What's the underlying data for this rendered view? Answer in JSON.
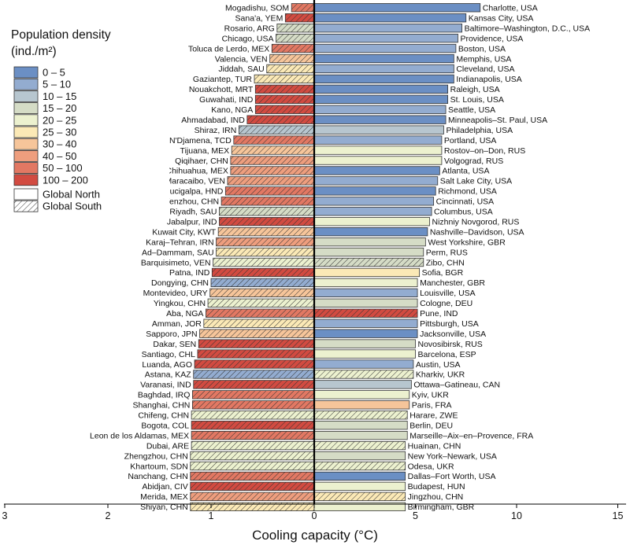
{
  "chart_data": {
    "type": "bar",
    "title": "",
    "xlabel": "Cooling capacity (°C)",
    "ylabel": "",
    "legend": {
      "title_line1": "Population density",
      "title_line2": "(ind./m²)",
      "placement": "top-left",
      "color_classes": [
        {
          "label": "0 – 5",
          "color": "#6b8fc4"
        },
        {
          "label": "5 – 10",
          "color": "#93acd0"
        },
        {
          "label": "10 – 15",
          "color": "#b7c6cf"
        },
        {
          "label": "15 – 20",
          "color": "#d5dcc6"
        },
        {
          "label": "20 – 25",
          "color": "#ecf1cf"
        },
        {
          "label": "25 – 30",
          "color": "#fbe9b6"
        },
        {
          "label": "30 – 40",
          "color": "#f6c59a"
        },
        {
          "label": "40 – 50",
          "color": "#ee9e7e"
        },
        {
          "label": "50 – 100",
          "color": "#e27863"
        },
        {
          "label": "100 – 200",
          "color": "#d24b41"
        }
      ],
      "region_classes": [
        {
          "label": "Global North",
          "pattern": "none"
        },
        {
          "label": "Global South",
          "pattern": "hatched"
        }
      ]
    },
    "left_axis": {
      "range": [
        0,
        3
      ],
      "ticks": [
        3,
        2,
        1,
        0
      ]
    },
    "right_axis": {
      "range": [
        0,
        15
      ],
      "ticks": [
        5,
        10,
        15
      ]
    },
    "global_south_series": [
      {
        "city": "Mogadishu, SOM",
        "value": 0.22,
        "class": 8
      },
      {
        "city": "Sana'a, YEM",
        "value": 0.28,
        "class": 9
      },
      {
        "city": "Rosario, ARG",
        "value": 0.36,
        "class": 3
      },
      {
        "city": "Chicago, USA",
        "value": 0.37,
        "class": 3
      },
      {
        "city": "Toluca de Lerdo, MEX",
        "value": 0.41,
        "class": 8
      },
      {
        "city": "Valencia, VEN",
        "value": 0.43,
        "class": 6
      },
      {
        "city": "Jiddah, SAU",
        "value": 0.46,
        "class": 5
      },
      {
        "city": "Gaziantep, TUR",
        "value": 0.58,
        "class": 5
      },
      {
        "city": "Nouakchott, MRT",
        "value": 0.57,
        "class": 9
      },
      {
        "city": "Guwahati, IND",
        "value": 0.57,
        "class": 9
      },
      {
        "city": "Kano, NGA",
        "value": 0.57,
        "class": 9
      },
      {
        "city": "Ahmadabad, IND",
        "value": 0.65,
        "class": 9
      },
      {
        "city": "Shiraz, IRN",
        "value": 0.73,
        "class": 2
      },
      {
        "city": "N'Djamena, TCD",
        "value": 0.78,
        "class": 8
      },
      {
        "city": "Tijuana, MEX",
        "value": 0.8,
        "class": 6
      },
      {
        "city": "Qiqihaer, CHN",
        "value": 0.81,
        "class": 7
      },
      {
        "city": "Chihuahua, MEX",
        "value": 0.81,
        "class": 7
      },
      {
        "city": "Maracaibo, VEN",
        "value": 0.84,
        "class": 7
      },
      {
        "city": "Tegucigalpa, HND",
        "value": 0.86,
        "class": 8
      },
      {
        "city": "Ruian–Wenzhou, CHN",
        "value": 0.9,
        "class": 8
      },
      {
        "city": "Riyadh, SAU",
        "value": 0.92,
        "class": 3
      },
      {
        "city": "Jabalpur, IND",
        "value": 0.92,
        "class": 9
      },
      {
        "city": "Kuwait City, KWT",
        "value": 0.93,
        "class": 6
      },
      {
        "city": "Karaj–Tehran, IRN",
        "value": 0.95,
        "class": 7
      },
      {
        "city": "Ad–Dammam, SAU",
        "value": 0.95,
        "class": 5
      },
      {
        "city": "Barquisimeto, VEN",
        "value": 0.98,
        "class": 4
      },
      {
        "city": "Patna, IND",
        "value": 0.99,
        "class": 9
      },
      {
        "city": "Dongying, CHN",
        "value": 1.0,
        "class": 1
      },
      {
        "city": "Montevideo, URY",
        "value": 1.01,
        "class": 6
      },
      {
        "city": "Yingkou, CHN",
        "value": 1.03,
        "class": 4
      },
      {
        "city": "Aba, NGA",
        "value": 1.05,
        "class": 8
      },
      {
        "city": "Amman, JOR",
        "value": 1.07,
        "class": 5
      },
      {
        "city": "Sapporo, JPN",
        "value": 1.11,
        "class": 6
      },
      {
        "city": "Dakar, SEN",
        "value": 1.12,
        "class": 9
      },
      {
        "city": "Santiago, CHL",
        "value": 1.13,
        "class": 9
      },
      {
        "city": "Luanda, AGO",
        "value": 1.16,
        "class": 9
      },
      {
        "city": "Astana, KAZ",
        "value": 1.17,
        "class": 1
      },
      {
        "city": "Varanasi, IND",
        "value": 1.17,
        "class": 9
      },
      {
        "city": "Baghdad, IRQ",
        "value": 1.18,
        "class": 8
      },
      {
        "city": "Shanghai, CHN",
        "value": 1.18,
        "class": 8
      },
      {
        "city": "Chifeng, CHN",
        "value": 1.19,
        "class": 4
      },
      {
        "city": "Bogota, COL",
        "value": 1.19,
        "class": 9
      },
      {
        "city": "Leon de los Aldamas, MEX",
        "value": 1.19,
        "class": 8
      },
      {
        "city": "Dubai, ARE",
        "value": 1.19,
        "class": 4
      },
      {
        "city": "Zhengzhou, CHN",
        "value": 1.2,
        "class": 4
      },
      {
        "city": "Khartoum, SDN",
        "value": 1.2,
        "class": 4
      },
      {
        "city": "Nanchang, CHN",
        "value": 1.2,
        "class": 8
      },
      {
        "city": "Abidjan, CIV",
        "value": 1.2,
        "class": 9
      },
      {
        "city": "Merida, MEX",
        "value": 1.2,
        "class": 7
      },
      {
        "city": "Shiyan, CHN",
        "value": 1.2,
        "class": 5
      }
    ],
    "global_north_series": [
      {
        "city": "Charlotte, USA",
        "value": 8.2,
        "class": 0,
        "south": false
      },
      {
        "city": "Kansas City, USA",
        "value": 7.5,
        "class": 0,
        "south": false
      },
      {
        "city": "Baltimore–Washington, D.C., USA",
        "value": 7.3,
        "class": 1,
        "south": false
      },
      {
        "city": "Providence, USA",
        "value": 7.1,
        "class": 1,
        "south": false
      },
      {
        "city": "Boston, USA",
        "value": 7.0,
        "class": 1,
        "south": false
      },
      {
        "city": "Memphis, USA",
        "value": 6.9,
        "class": 0,
        "south": false
      },
      {
        "city": "Cleveland, USA",
        "value": 6.9,
        "class": 1,
        "south": false
      },
      {
        "city": "Indianapolis, USA",
        "value": 6.9,
        "class": 0,
        "south": false
      },
      {
        "city": "Raleigh, USA",
        "value": 6.6,
        "class": 0,
        "south": false
      },
      {
        "city": "St. Louis, USA",
        "value": 6.6,
        "class": 0,
        "south": false
      },
      {
        "city": "Seattle, USA",
        "value": 6.5,
        "class": 1,
        "south": false
      },
      {
        "city": "Minneapolis–St. Paul, USA",
        "value": 6.5,
        "class": 0,
        "south": false
      },
      {
        "city": "Philadelphia, USA",
        "value": 6.4,
        "class": 2,
        "south": false
      },
      {
        "city": "Portland, USA",
        "value": 6.3,
        "class": 1,
        "south": false
      },
      {
        "city": "Rostov–on–Don, RUS",
        "value": 6.3,
        "class": 4,
        "south": false
      },
      {
        "city": "Volgograd, RUS",
        "value": 6.3,
        "class": 4,
        "south": false
      },
      {
        "city": "Atlanta, USA",
        "value": 6.2,
        "class": 0,
        "south": false
      },
      {
        "city": "Salt Lake City, USA",
        "value": 6.1,
        "class": 1,
        "south": false
      },
      {
        "city": "Richmond, USA",
        "value": 6.0,
        "class": 0,
        "south": false
      },
      {
        "city": "Cincinnati, USA",
        "value": 5.9,
        "class": 1,
        "south": false
      },
      {
        "city": "Columbus, USA",
        "value": 5.8,
        "class": 1,
        "south": false
      },
      {
        "city": "Nizhniy Novgorod, RUS",
        "value": 5.7,
        "class": 4,
        "south": false
      },
      {
        "city": "Nashville–Davidson, USA",
        "value": 5.6,
        "class": 0,
        "south": false
      },
      {
        "city": "West Yorkshire, GBR",
        "value": 5.5,
        "class": 3,
        "south": false
      },
      {
        "city": "Perm, RUS",
        "value": 5.4,
        "class": 3,
        "south": false
      },
      {
        "city": "Zibo, CHN",
        "value": 5.4,
        "class": 3,
        "south": true
      },
      {
        "city": "Sofia, BGR",
        "value": 5.2,
        "class": 5,
        "south": false
      },
      {
        "city": "Manchester, GBR",
        "value": 5.1,
        "class": 4,
        "south": false
      },
      {
        "city": "Louisville, USA",
        "value": 5.1,
        "class": 1,
        "south": false
      },
      {
        "city": "Cologne, DEU",
        "value": 5.1,
        "class": 3,
        "south": false
      },
      {
        "city": "Pune, IND",
        "value": 5.1,
        "class": 9,
        "south": true
      },
      {
        "city": "Pittsburgh, USA",
        "value": 5.1,
        "class": 1,
        "south": false
      },
      {
        "city": "Jacksonville, USA",
        "value": 5.1,
        "class": 0,
        "south": false
      },
      {
        "city": "Novosibirsk, RUS",
        "value": 5.0,
        "class": 3,
        "south": false
      },
      {
        "city": "Barcelona, ESP",
        "value": 5.0,
        "class": 4,
        "south": false
      },
      {
        "city": "Austin, USA",
        "value": 4.9,
        "class": 1,
        "south": false
      },
      {
        "city": "Kharkiv, UKR",
        "value": 4.9,
        "class": 4,
        "south": true
      },
      {
        "city": "Ottawa–Gatineau, CAN",
        "value": 4.8,
        "class": 2,
        "south": false
      },
      {
        "city": "Kyiv, UKR",
        "value": 4.7,
        "class": 4,
        "south": false
      },
      {
        "city": "Paris, FRA",
        "value": 4.7,
        "class": 6,
        "south": false
      },
      {
        "city": "Harare, ZWE",
        "value": 4.6,
        "class": 4,
        "south": true
      },
      {
        "city": "Berlin, DEU",
        "value": 4.6,
        "class": 3,
        "south": false
      },
      {
        "city": "Marseille–Aix–en–Provence, FRA",
        "value": 4.6,
        "class": 3,
        "south": false
      },
      {
        "city": "Huainan, CHN",
        "value": 4.5,
        "class": 4,
        "south": true
      },
      {
        "city": "New York–Newark, USA",
        "value": 4.5,
        "class": 3,
        "south": false
      },
      {
        "city": "Odesa, UKR",
        "value": 4.5,
        "class": 4,
        "south": true
      },
      {
        "city": "Dallas–Fort Worth, USA",
        "value": 4.5,
        "class": 0,
        "south": false
      },
      {
        "city": "Budapest, HUN",
        "value": 4.5,
        "class": 4,
        "south": false
      },
      {
        "city": "Jingzhou, CHN",
        "value": 4.5,
        "class": 5,
        "south": true
      },
      {
        "city": "Birmingham, GBR",
        "value": 4.5,
        "class": 4,
        "south": false
      }
    ]
  }
}
